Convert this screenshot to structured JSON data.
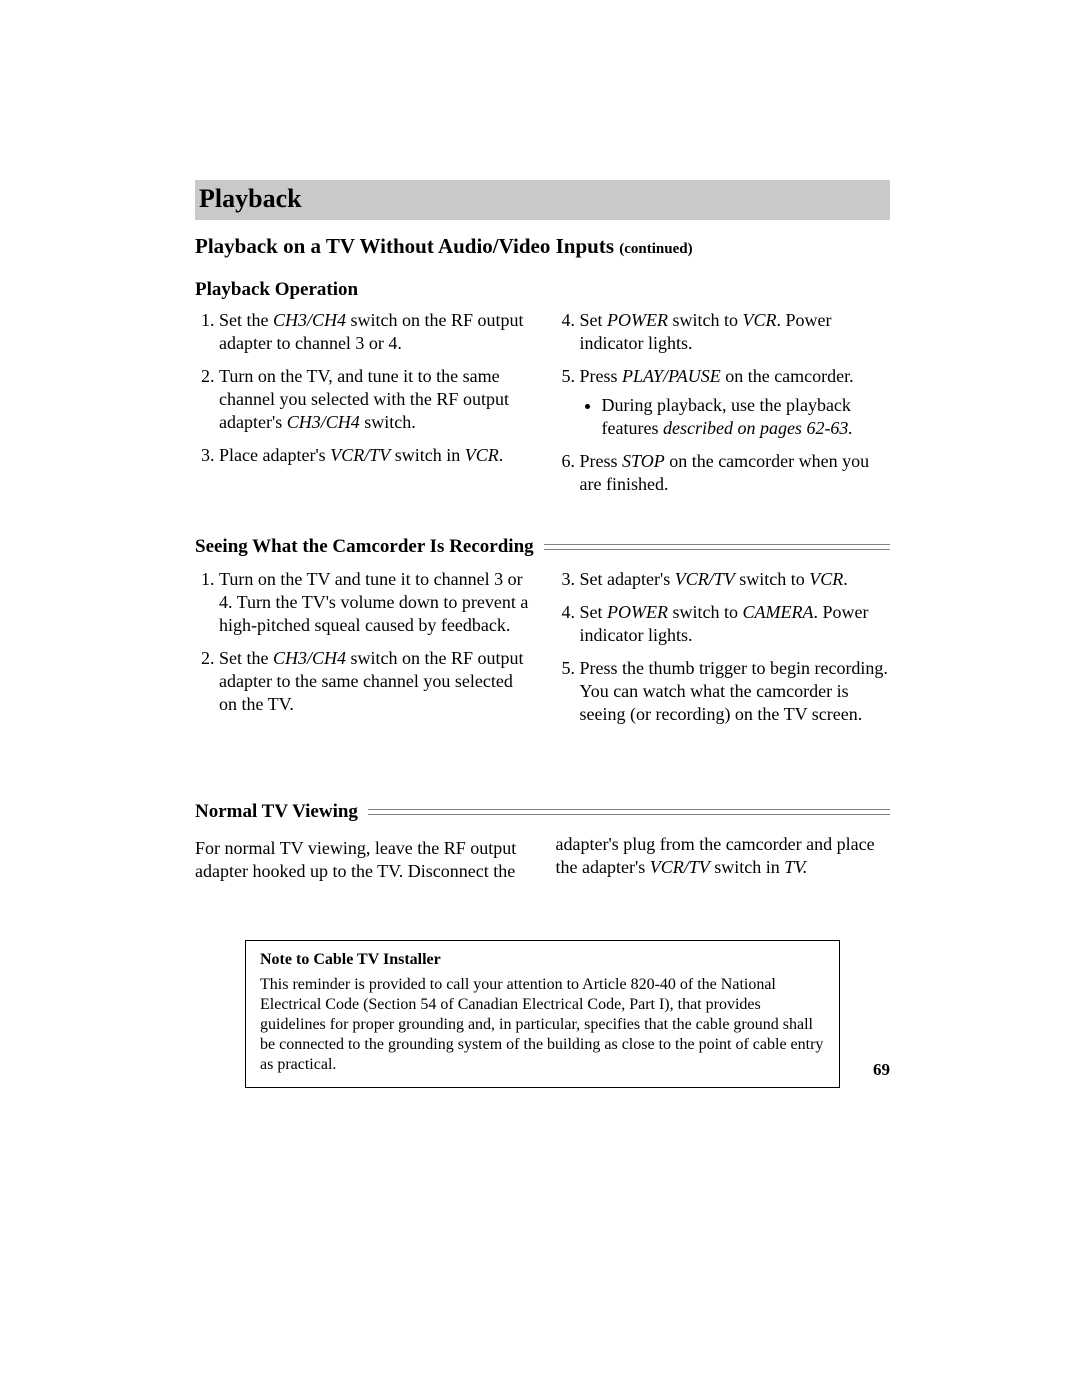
{
  "band_title": "Playback",
  "subtitle_main": "Playback on a TV Without Audio/Video Inputs ",
  "subtitle_cont": "(continued)",
  "sec1_heading": "Playback Operation",
  "sec1_items": [
    "Set the <em class=\"i\">CH3/CH4</em> switch on the RF output adapter to channel 3 or 4.",
    "Turn on the TV, and tune it to the same channel you selected with the RF output adapter's <em class=\"i\">CH3/CH4</em> switch.",
    "Place adapter's <em class=\"i\">VCR/TV</em> switch in <em class=\"i\">VCR</em>.",
    "Set <em class=\"i\">POWER</em> switch to <em class=\"i\">VCR</em>.  Power indicator lights.",
    "Press <em class=\"i\">PLAY/PAUSE</em> on the camcorder.<ul><li>During playback, use the playback features <em class=\"i\">described on pages 62-63.</em></li></ul>",
    "Press <em class=\"i\">STOP</em> on the camcorder when you are finished."
  ],
  "sec2_heading": "Seeing What the Camcorder Is Recording",
  "sec2_items": [
    "Turn on the TV and tune it to channel 3 or 4.  Turn the TV's volume down to prevent a high-pitched squeal caused by feedback.",
    "Set the <em class=\"i\">CH3/CH4</em> switch on the RF output adapter to the same channel you selected on the TV.",
    "Set adapter's <em class=\"i\">VCR/TV</em> switch to <em class=\"i\">VCR</em>.",
    "Set <em class=\"i\">POWER</em> switch to <em class=\"i\">CAMERA</em>. Power indicator lights.",
    "Press the thumb trigger to begin recording.  You can watch what the camcorder is seeing (or recording) on the TV screen."
  ],
  "sec3_heading": "Normal TV Viewing",
  "sec3_para": "For normal TV viewing, leave the RF output adapter hooked up to the TV.  Disconnect the adapter's plug from the camcorder and place the adapter's <em class=\"i\">VCR/TV</em> switch in <em class=\"i\">TV.</em>",
  "note_title": "Note to Cable TV Installer",
  "note_body": "This reminder is provided to call your attention to Article 820-40 of the National Electrical Code (Section 54 of Canadian Electrical Code, Part I), that provides guidelines for proper grounding and, in particular, specifies that the cable ground shall be connected to the grounding system of the building as close to the point of cable entry as practical.",
  "page_number": "69"
}
